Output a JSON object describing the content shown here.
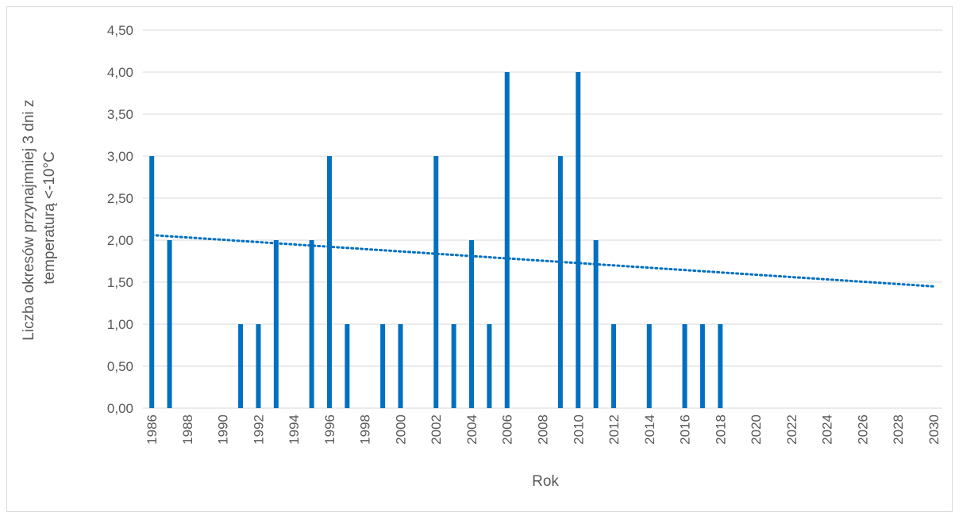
{
  "chart_data": {
    "type": "bar",
    "title": "",
    "xlabel": "Rok",
    "ylabel_lines": [
      "Liczba okresów przynajmniej 3 dni z",
      "temperaturą <-10°C"
    ],
    "ylim": [
      0,
      4.5
    ],
    "y_ticks": [
      "0,00",
      "0,50",
      "1,00",
      "1,50",
      "2,00",
      "2,50",
      "3,00",
      "3,50",
      "4,00",
      "4,50"
    ],
    "x_range": [
      1986,
      2030
    ],
    "x_tick_labels": [
      "1986",
      "1988",
      "1990",
      "1992",
      "1994",
      "1996",
      "1998",
      "2000",
      "2002",
      "2004",
      "2006",
      "2008",
      "2010",
      "2012",
      "2014",
      "2016",
      "2018",
      "2020",
      "2022",
      "2024",
      "2026",
      "2028",
      "2030"
    ],
    "series": [
      {
        "years": [
          1986,
          1987,
          1991,
          1992,
          1993,
          1995,
          1996,
          1997,
          1999,
          2000,
          2002,
          2003,
          2004,
          2005,
          2006,
          2009,
          2010,
          2011,
          2012,
          2014,
          2016,
          2017,
          2018
        ],
        "values": [
          3,
          2,
          1,
          1,
          2,
          2,
          3,
          1,
          1,
          1,
          3,
          1,
          2,
          1,
          4,
          3,
          4,
          2,
          1,
          1,
          1,
          1,
          1
        ],
        "color": "#0070c0"
      }
    ],
    "trendline": {
      "type": "linear",
      "start": [
        1986,
        2.06
      ],
      "end": [
        2030,
        1.45
      ],
      "style": "dotted",
      "color": "#0070c0"
    },
    "grid": true,
    "legend": "none"
  }
}
